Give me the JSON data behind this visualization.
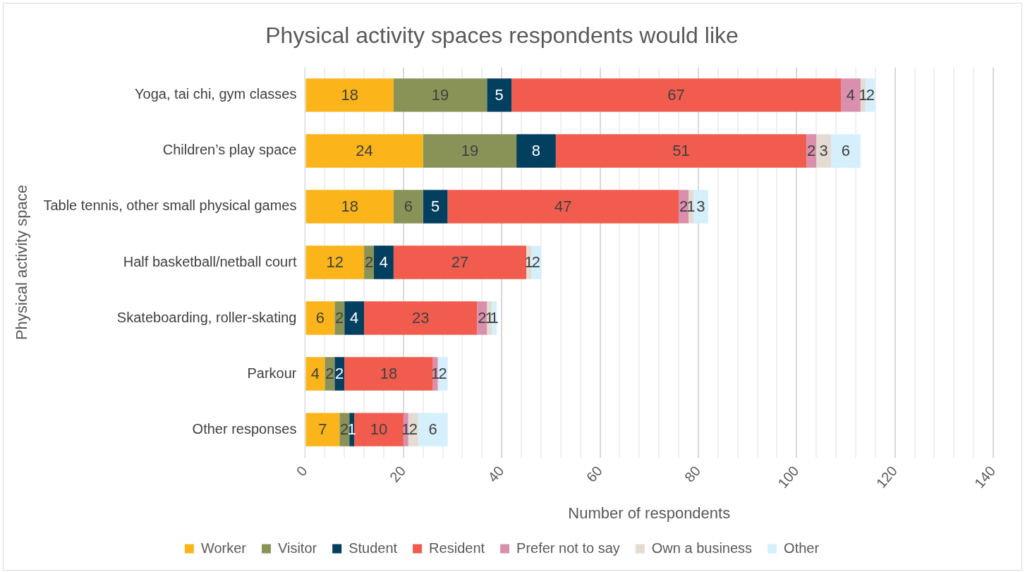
{
  "chart_data": {
    "type": "bar",
    "orientation": "horizontal",
    "stacked": true,
    "title": "Physical activity spaces respondents would like",
    "xlabel": "Number of respondents",
    "ylabel": "Physical activity space",
    "categories": [
      "Yoga, tai chi, gym classes",
      "Children’s play space",
      "Table tennis, other small physical games",
      "Half basketball/netball court",
      "Skateboarding, roller-skating",
      "Parkour",
      "Other responses"
    ],
    "series": [
      {
        "name": "Worker",
        "color": "#fbb51a",
        "values": [
          18,
          24,
          18,
          12,
          6,
          4,
          7
        ]
      },
      {
        "name": "Visitor",
        "color": "#899358",
        "values": [
          19,
          19,
          6,
          2,
          2,
          2,
          2
        ]
      },
      {
        "name": "Student",
        "color": "#033f5e",
        "values": [
          5,
          8,
          5,
          4,
          4,
          2,
          1
        ]
      },
      {
        "name": "Resident",
        "color": "#f25c4f",
        "values": [
          67,
          51,
          47,
          27,
          23,
          18,
          10
        ]
      },
      {
        "name": "Prefer not to say",
        "color": "#da90ad",
        "values": [
          4,
          2,
          2,
          null,
          2,
          1,
          1
        ]
      },
      {
        "name": "Own a business",
        "color": "#e4dcd3",
        "values": [
          1,
          3,
          1,
          1,
          1,
          null,
          2
        ]
      },
      {
        "name": "Other",
        "color": "#d5effc",
        "values": [
          2,
          6,
          3,
          2,
          1,
          2,
          6
        ]
      }
    ],
    "xlim": [
      0,
      140
    ],
    "xticks": [
      0,
      {
        "value": 4,
        "label": null
      },
      {
        "value": 8,
        "label": null
      },
      {
        "value": 12,
        "label": null
      },
      {
        "value": 16,
        "label": null
      },
      20,
      {
        "value": 24,
        "label": null
      },
      {
        "value": 28,
        "label": null
      },
      {
        "value": 32,
        "label": null
      },
      {
        "value": 36,
        "label": null
      },
      40,
      {
        "value": 44,
        "label": null
      },
      {
        "value": 48,
        "label": null
      },
      {
        "value": 52,
        "label": null
      },
      {
        "value": 56,
        "label": null
      },
      60,
      {
        "value": 64,
        "label": null
      },
      {
        "value": 68,
        "label": null
      },
      {
        "value": 72,
        "label": null
      },
      {
        "value": 76,
        "label": null
      },
      80,
      {
        "value": 84,
        "label": null
      },
      {
        "value": 88,
        "label": null
      },
      {
        "value": 92,
        "label": null
      },
      {
        "value": 96,
        "label": null
      },
      100,
      {
        "value": 104,
        "label": null
      },
      {
        "value": 108,
        "label": null
      },
      {
        "value": 112,
        "label": null
      },
      {
        "value": 116,
        "label": null
      },
      120,
      {
        "value": 124,
        "label": null
      },
      {
        "value": 128,
        "label": null
      },
      {
        "value": 132,
        "label": null
      },
      {
        "value": 136,
        "label": null
      },
      140
    ],
    "grid": "x",
    "legend": "bottom",
    "data_labels": true
  }
}
